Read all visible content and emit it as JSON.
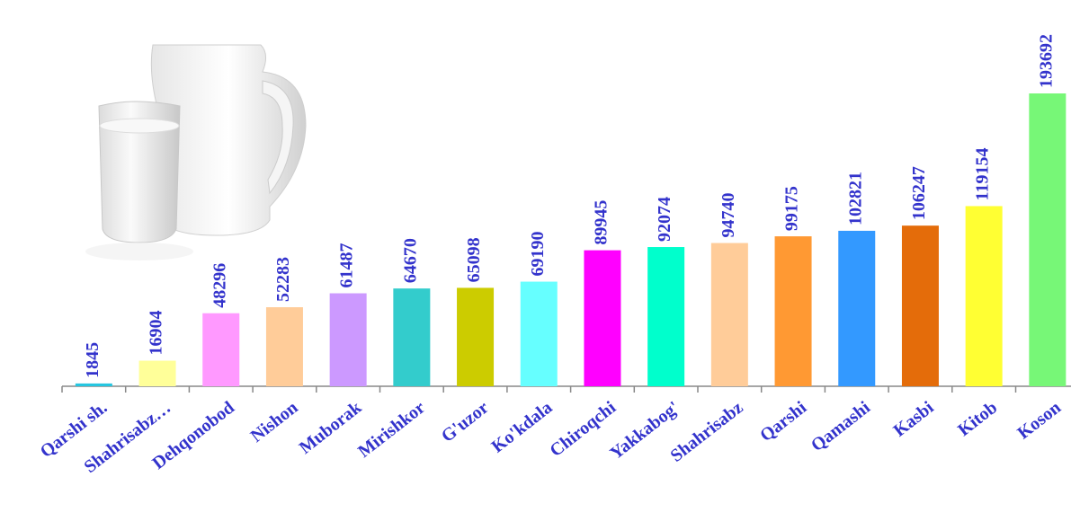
{
  "chart_data": {
    "type": "bar",
    "categories": [
      "Qarshi sh.",
      "Shahrisabz…",
      "Dehqonobod",
      "Nishon",
      "Muborak",
      "Mirishkor",
      "G'uzor",
      "Ko'kdala",
      "Chiroqchi",
      "Yakkabog'",
      "Shahrisabz",
      "Qarshi",
      "Qamashi",
      "Kasbi",
      "Kitob",
      "Koson"
    ],
    "values": [
      1845,
      16904,
      48296,
      52283,
      61487,
      64670,
      65098,
      69190,
      89945,
      92074,
      94740,
      99175,
      102821,
      106247,
      119154,
      193692
    ],
    "colors": [
      "#26c6e0",
      "#ffff99",
      "#ff99ff",
      "#ffcc99",
      "#cc99ff",
      "#33cccc",
      "#cccc00",
      "#66ffff",
      "#ff00ff",
      "#00ffcc",
      "#ffcc99",
      "#ff9933",
      "#3399ff",
      "#e46c0a",
      "#ffff33",
      "#77f777"
    ]
  }
}
